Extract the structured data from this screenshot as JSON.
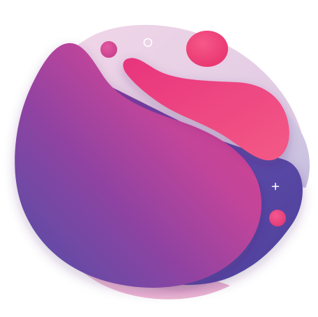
{
  "artwork": {
    "subject": "fluid-gradient-blob-illustration",
    "colors": {
      "background": "#ffffff",
      "backdrop_light": "#e9cfe2",
      "backdrop_lavender": "#cfc6e2",
      "violet": "#5a4aa6",
      "deep_violet": "#4b3f9a",
      "magenta": "#c23f93",
      "pink": "#ef3f7e",
      "hot_pink": "#f24c7f",
      "light_pink": "#f5a6c6",
      "white": "#ffffff"
    }
  }
}
